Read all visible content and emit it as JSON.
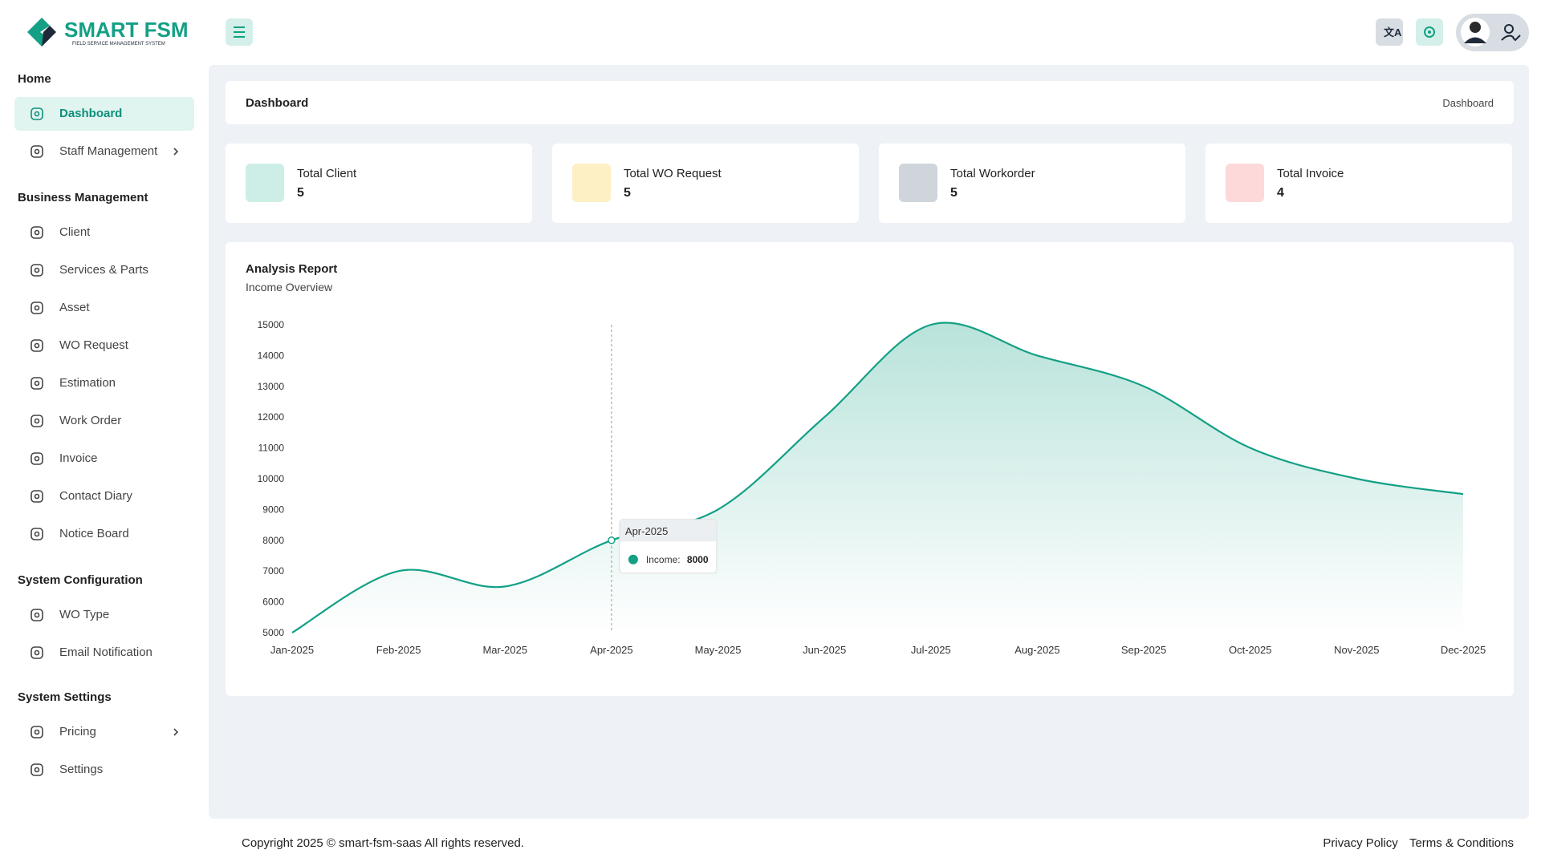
{
  "logo": {
    "name": "SMART FSM",
    "tagline": "FIELD SERVICE MANAGEMENT SYSTEM"
  },
  "sidebar": {
    "sections": [
      {
        "title": "Home",
        "items": [
          {
            "label": "Dashboard",
            "active": true
          },
          {
            "label": "Staff Management",
            "submenu": true
          }
        ]
      },
      {
        "title": "Business Management",
        "items": [
          {
            "label": "Client"
          },
          {
            "label": "Services & Parts"
          },
          {
            "label": "Asset"
          },
          {
            "label": "WO Request"
          },
          {
            "label": "Estimation"
          },
          {
            "label": "Work Order"
          },
          {
            "label": "Invoice"
          },
          {
            "label": "Contact Diary"
          },
          {
            "label": "Notice Board"
          }
        ]
      },
      {
        "title": "System Configuration",
        "items": [
          {
            "label": "WO Type"
          },
          {
            "label": "Email Notification"
          }
        ]
      },
      {
        "title": "System Settings",
        "items": [
          {
            "label": "Pricing",
            "submenu": true
          },
          {
            "label": "Settings"
          }
        ]
      }
    ]
  },
  "breadcrumb": {
    "title": "Dashboard",
    "trail": "Dashboard"
  },
  "stats": [
    {
      "label": "Total Client",
      "value": 5,
      "color": "#cdeee6"
    },
    {
      "label": "Total WO Request",
      "value": 5,
      "color": "#fdf0c4"
    },
    {
      "label": "Total Workorder",
      "value": 5,
      "color": "#cfd5db"
    },
    {
      "label": "Total Invoice",
      "value": 4,
      "color": "#fdd9d9"
    }
  ],
  "chart_data": {
    "type": "line",
    "title": "Analysis Report",
    "subtitle": "Income Overview",
    "categories": [
      "Jan-2025",
      "Feb-2025",
      "Mar-2025",
      "Apr-2025",
      "May-2025",
      "Jun-2025",
      "Jul-2025",
      "Aug-2025",
      "Sep-2025",
      "Oct-2025",
      "Nov-2025",
      "Dec-2025"
    ],
    "series": [
      {
        "name": "Income",
        "color": "#13a085",
        "values": [
          5000,
          7000,
          6500,
          8000,
          9000,
          12000,
          15000,
          14000,
          13000,
          11000,
          10000,
          9500
        ]
      }
    ],
    "ylim": [
      5000,
      15000
    ],
    "yticks": [
      5000,
      6000,
      7000,
      8000,
      9000,
      10000,
      11000,
      12000,
      13000,
      14000,
      15000
    ],
    "area": true,
    "tooltip": {
      "index": 3,
      "label": "Income:"
    }
  },
  "footer": {
    "copyright": "Copyright 2025 © smart-fsm-saas All rights reserved.",
    "links": [
      "Privacy Policy",
      "Terms & Conditions"
    ]
  }
}
